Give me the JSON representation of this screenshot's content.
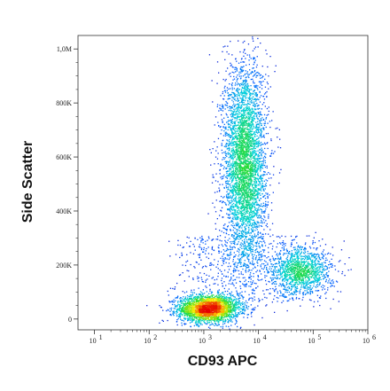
{
  "chart_data": {
    "type": "scatter",
    "title": "",
    "xlabel": "CD93 APC",
    "ylabel": "Side Scatter",
    "x_scale": "log",
    "xlim": [
      5,
      1000000
    ],
    "ylim": [
      -40000,
      1050000
    ],
    "x_ticks": [
      {
        "base": "10",
        "exp": "1",
        "value": 10
      },
      {
        "base": "10",
        "exp": "2",
        "value": 100
      },
      {
        "base": "10",
        "exp": "3",
        "value": 1000
      },
      {
        "base": "10",
        "exp": "4",
        "value": 10000
      },
      {
        "base": "10",
        "exp": "5",
        "value": 100000
      },
      {
        "base": "10",
        "exp": "6",
        "value": 1000000
      }
    ],
    "y_ticks": [
      {
        "label": "0",
        "value": 0
      },
      {
        "label": "200K",
        "value": 200000
      },
      {
        "label": "400K",
        "value": 400000
      },
      {
        "label": "600K",
        "value": 600000
      },
      {
        "label": "800K",
        "value": 800000
      },
      {
        "label": "1,0M",
        "value": 1000000
      }
    ],
    "colormap": "density: blue → cyan → green → yellow → red",
    "populations": [
      {
        "x_center": 1200,
        "y_center": 40000,
        "x_spread_decades": 0.28,
        "y_spread": 25000,
        "count": 2600
      },
      {
        "x_center": 5500,
        "y_center": 570000,
        "x_spread_decades": 0.2,
        "y_spread": 190000,
        "count": 4200
      },
      {
        "x_center": 60000,
        "y_center": 180000,
        "x_spread_decades": 0.28,
        "y_spread": 45000,
        "count": 1300
      }
    ],
    "grid": false,
    "legend": "none"
  }
}
